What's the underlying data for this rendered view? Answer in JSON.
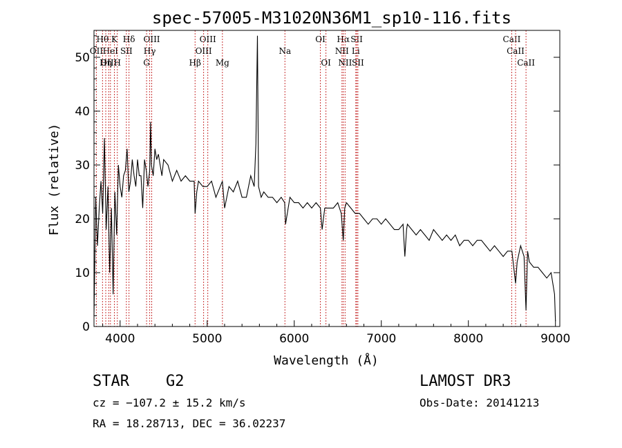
{
  "chart_data": {
    "type": "line",
    "title": "spec-57005-M31020N36M1_sp10-116.fits",
    "xlabel": "Wavelength (Å)",
    "ylabel": "Flux (relative)",
    "xlim": [
      3700,
      9050
    ],
    "ylim": [
      0,
      55
    ],
    "xticks": [
      4000,
      5000,
      6000,
      7000,
      8000,
      9000
    ],
    "yticks": [
      0,
      10,
      20,
      30,
      40,
      50
    ],
    "series": [
      {
        "name": "flux",
        "x": [
          3700,
          3720,
          3740,
          3760,
          3780,
          3800,
          3820,
          3840,
          3860,
          3880,
          3900,
          3920,
          3940,
          3960,
          3980,
          4000,
          4020,
          4040,
          4060,
          4080,
          4100,
          4120,
          4140,
          4160,
          4180,
          4200,
          4220,
          4240,
          4260,
          4280,
          4300,
          4320,
          4340,
          4350,
          4360,
          4380,
          4400,
          4420,
          4440,
          4460,
          4480,
          4500,
          4550,
          4600,
          4650,
          4700,
          4750,
          4800,
          4850,
          4861,
          4880,
          4900,
          4950,
          5000,
          5050,
          5100,
          5150,
          5175,
          5200,
          5250,
          5300,
          5350,
          5400,
          5450,
          5500,
          5540,
          5560,
          5577,
          5590,
          5620,
          5650,
          5700,
          5750,
          5800,
          5850,
          5890,
          5900,
          5950,
          6000,
          6050,
          6100,
          6150,
          6200,
          6250,
          6300,
          6320,
          6350,
          6400,
          6450,
          6500,
          6540,
          6563,
          6580,
          6600,
          6650,
          6700,
          6750,
          6800,
          6850,
          6900,
          6950,
          7000,
          7050,
          7100,
          7150,
          7200,
          7250,
          7270,
          7290,
          7300,
          7350,
          7400,
          7450,
          7500,
          7550,
          7600,
          7650,
          7700,
          7750,
          7800,
          7850,
          7900,
          7950,
          8000,
          8050,
          8100,
          8150,
          8200,
          8250,
          8300,
          8350,
          8400,
          8450,
          8500,
          8542,
          8560,
          8600,
          8640,
          8662,
          8680,
          8700,
          8750,
          8800,
          8850,
          8900,
          8950,
          8990,
          9000
        ],
        "values": [
          2,
          24,
          15,
          22,
          27,
          21,
          35,
          18,
          26,
          10,
          22,
          6,
          25,
          17,
          30,
          26,
          24,
          28,
          29,
          33,
          25,
          27,
          31,
          28,
          26,
          31,
          28,
          28,
          22,
          31,
          29,
          26,
          29,
          38,
          30,
          28,
          33,
          31,
          32,
          30,
          28,
          31,
          30,
          27,
          29,
          27,
          28,
          27,
          27,
          21,
          25,
          27,
          26,
          26,
          27,
          24,
          26,
          27,
          22,
          26,
          25,
          27,
          24,
          24,
          28,
          26,
          34,
          54,
          26,
          24,
          25,
          24,
          24,
          23,
          24,
          23,
          19,
          24,
          23,
          23,
          22,
          23,
          22,
          23,
          22,
          18,
          22,
          22,
          22,
          23,
          21,
          16,
          22,
          23,
          22,
          21,
          21,
          20,
          19,
          20,
          20,
          19,
          20,
          19,
          18,
          18,
          19,
          13,
          18,
          19,
          18,
          17,
          18,
          17,
          16,
          18,
          17,
          16,
          17,
          16,
          17,
          15,
          16,
          16,
          15,
          16,
          16,
          15,
          14,
          15,
          14,
          13,
          14,
          14,
          8,
          12,
          15,
          13,
          3,
          14,
          12,
          11,
          11,
          10,
          9,
          10,
          6,
          1
        ]
      }
    ],
    "lines": [
      {
        "label": "Hθ",
        "x": 3798,
        "row": 0
      },
      {
        "label": "K",
        "x": 3934,
        "row": 0
      },
      {
        "label": "Hδ",
        "x": 4102,
        "row": 0
      },
      {
        "label": "OIII",
        "x": 4363,
        "row": 0
      },
      {
        "label": "OIII",
        "x": 5007,
        "row": 0
      },
      {
        "label": "OI",
        "x": 6300,
        "row": 0
      },
      {
        "label": "Hα",
        "x": 6563,
        "row": 0
      },
      {
        "label": "SII",
        "x": 6717,
        "row": 0
      },
      {
        "label": "CaII",
        "x": 8498,
        "row": 0
      },
      {
        "label": "OII",
        "x": 3727,
        "row": 1
      },
      {
        "label": "HeI",
        "x": 3889,
        "row": 1
      },
      {
        "label": "SII",
        "x": 4072,
        "row": 1
      },
      {
        "label": "Hγ",
        "x": 4340,
        "row": 1
      },
      {
        "label": "OIII",
        "x": 4959,
        "row": 1
      },
      {
        "label": "Na",
        "x": 5893,
        "row": 1
      },
      {
        "label": "NII",
        "x": 6548,
        "row": 1
      },
      {
        "label": "Li",
        "x": 6707,
        "row": 1
      },
      {
        "label": "CaII",
        "x": 8542,
        "row": 1
      },
      {
        "label": "OIII",
        "x": 3869,
        "row": 2
      },
      {
        "label": "Hη",
        "x": 3835,
        "row": 2
      },
      {
        "label": "H",
        "x": 3968,
        "row": 2
      },
      {
        "label": "G",
        "x": 4304,
        "row": 2
      },
      {
        "label": "Hβ",
        "x": 4861,
        "row": 2
      },
      {
        "label": "Mg",
        "x": 5175,
        "row": 2
      },
      {
        "label": "OI",
        "x": 6364,
        "row": 2
      },
      {
        "label": "NII",
        "x": 6584,
        "row": 2
      },
      {
        "label": "SII",
        "x": 6731,
        "row": 2
      },
      {
        "label": "CaII",
        "x": 8662,
        "row": 2
      }
    ]
  },
  "info": {
    "class": "STAR",
    "subclass": "G2",
    "survey": "LAMOST DR3",
    "cz": "cz = −107.2 ± 15.2 km/s",
    "obs_date": "Obs-Date: 20141213",
    "coords": "RA =  18.28713, DEC =  36.02237"
  }
}
